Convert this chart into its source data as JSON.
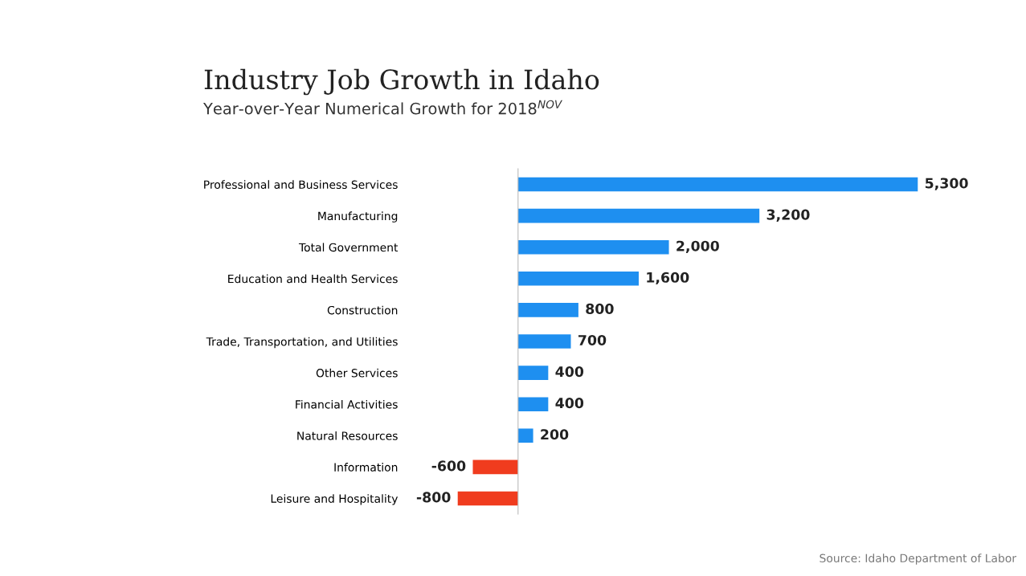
{
  "chart_data": {
    "type": "bar",
    "orientation": "horizontal",
    "title": "Industry Job Growth in Idaho",
    "subtitle": "Year-over-Year Numerical Growth for 2018$^{NOV}$",
    "categories": [
      "Professional and Business Services",
      "Manufacturing",
      "Total Government",
      "Education and Health Services",
      "Construction",
      "Trade, Transportation, and Utilities",
      "Other Services",
      "Financial Activities",
      "Natural Resources",
      "Information",
      "Leisure and Hospitality"
    ],
    "values": [
      5300,
      3200,
      2000,
      1600,
      800,
      700,
      400,
      400,
      200,
      -600,
      -800
    ],
    "value_labels": [
      "5,300",
      "3,200",
      "2,000",
      "1,600",
      "800",
      "700",
      "400",
      "400",
      "200",
      "-600",
      "-800"
    ],
    "colors": [
      "#1e8ff0",
      "#1e8ff0",
      "#1e8ff0",
      "#1e8ff0",
      "#1e8ff0",
      "#1e8ff0",
      "#1e8ff0",
      "#1e8ff0",
      "#1e8ff0",
      "#f03c1e",
      "#f03c1e"
    ],
    "annotations": [
      "Source: Idaho Department of Labor"
    ]
  }
}
